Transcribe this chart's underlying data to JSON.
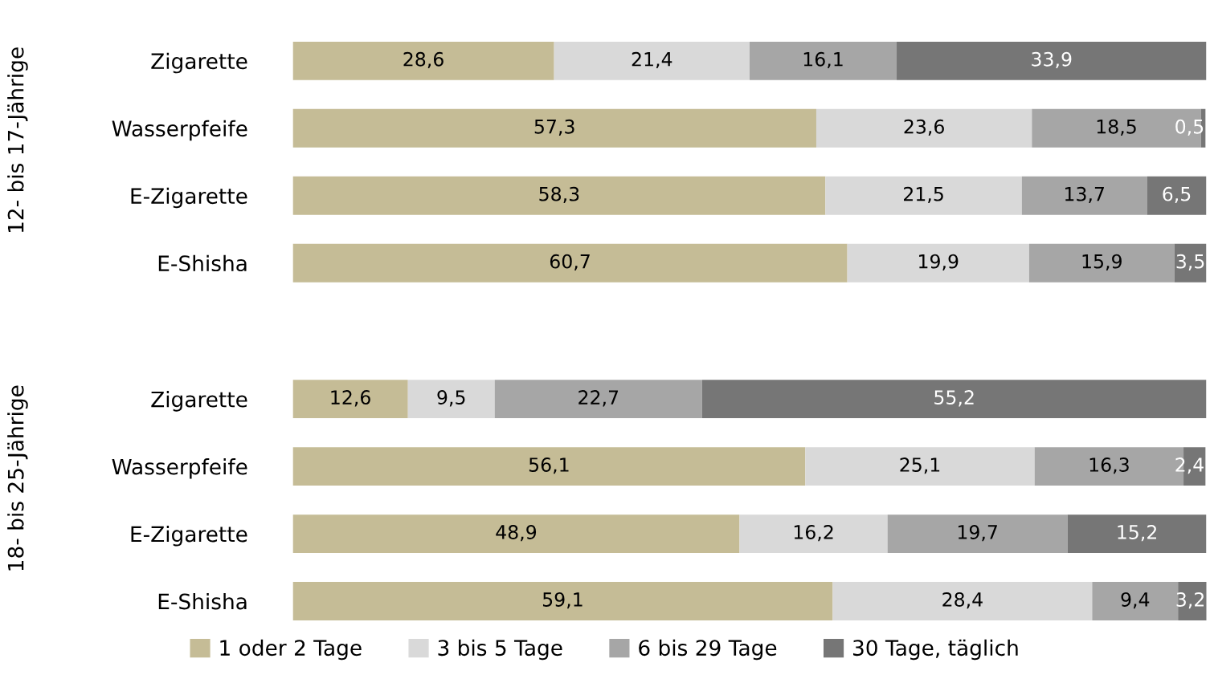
{
  "chart_data": [
    {
      "type": "bar",
      "orientation": "horizontal",
      "stacked": true,
      "ylabel": "12- bis 17-Jährige",
      "categories": [
        "Zigarette",
        "Wasserpfeife",
        "E-Zigarette",
        "E-Shisha"
      ],
      "xlim": [
        0,
        100
      ],
      "tick_labels": "y",
      "legend": false,
      "series": [
        {
          "color": "#c5bc96",
          "values": [
            28.6,
            57.3,
            58.3,
            60.7
          ],
          "value_labels": [
            "28,6",
            "57,3",
            "58,3",
            "60,7"
          ]
        },
        {
          "color": "#d9d9d9",
          "values": [
            21.4,
            23.6,
            21.5,
            19.9
          ],
          "value_labels": [
            "21,4",
            "23,6",
            "21,5",
            "19,9"
          ]
        },
        {
          "color": "#a6a6a6",
          "values": [
            16.1,
            18.5,
            13.7,
            15.9
          ],
          "value_labels": [
            "16,1",
            "18,5",
            "13,7",
            "15,9"
          ]
        },
        {
          "color": "#767676",
          "values": [
            33.9,
            0.5,
            6.5,
            3.5
          ],
          "value_labels": [
            "33,9",
            "0,5",
            "6,5",
            "3,5"
          ]
        }
      ]
    },
    {
      "type": "bar",
      "orientation": "horizontal",
      "stacked": true,
      "ylabel": "18- bis 25-Jährige",
      "categories": [
        "Zigarette",
        "Wasserpfeife",
        "E-Zigarette",
        "E-Shisha"
      ],
      "xlim": [
        0,
        100
      ],
      "tick_labels": "y",
      "legend": "bottom",
      "series": [
        {
          "name": "1 oder 2 Tage",
          "color": "#c5bc96",
          "values": [
            12.6,
            56.1,
            48.9,
            59.1
          ],
          "value_labels": [
            "12,6",
            "56,1",
            "48,9",
            "59,1"
          ]
        },
        {
          "name": "3 bis 5 Tage",
          "color": "#d9d9d9",
          "values": [
            9.5,
            25.1,
            16.2,
            28.4
          ],
          "value_labels": [
            "9,5",
            "25,1",
            "16,2",
            "28,4"
          ]
        },
        {
          "name": "6 bis 29 Tage",
          "color": "#a6a6a6",
          "values": [
            22.7,
            16.3,
            19.7,
            9.4
          ],
          "value_labels": [
            "22,7",
            "16,3",
            "19,7",
            "9,4"
          ]
        },
        {
          "name": "30 Tage, täglich",
          "color": "#767676",
          "values": [
            55.2,
            2.4,
            15.2,
            3.2
          ],
          "value_labels": [
            "55,2",
            "2,4",
            "15,2",
            "3,2"
          ]
        }
      ]
    }
  ]
}
